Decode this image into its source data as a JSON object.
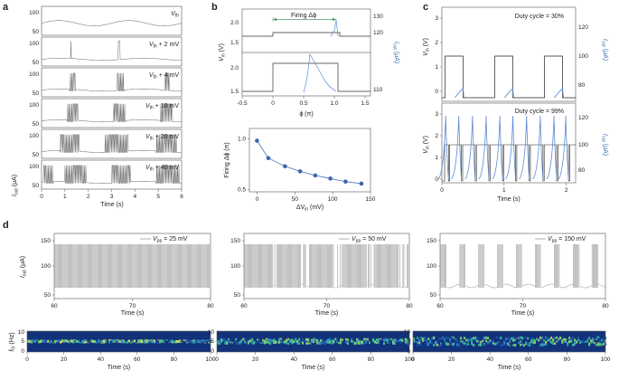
{
  "panels": {
    "a": {
      "label": "a",
      "ylabel_main": "I",
      "ylabel_sub": "out",
      "ylabel_unit": " (μA)",
      "xlabel": "Time (s)",
      "xticks": [
        "0",
        "1",
        "2",
        "3",
        "4",
        "5",
        "6"
      ],
      "yticks_top": [
        "50",
        "100"
      ],
      "trace_labels": [
        {
          "base": "V",
          "sub": "th",
          "suffix": ""
        },
        {
          "base": "V",
          "sub": "th",
          "suffix": " + 2 mV"
        },
        {
          "base": "V",
          "sub": "th",
          "suffix": " + 4 mV"
        },
        {
          "base": "V",
          "sub": "th",
          "suffix": " + 10 mV"
        },
        {
          "base": "V",
          "sub": "th",
          "suffix": " + 20 mV"
        },
        {
          "base": "V",
          "sub": "th",
          "suffix": " + 40 mV"
        }
      ]
    },
    "b": {
      "label": "b",
      "firing_label": "Firing Δϕ",
      "top_ylabel_left": "V",
      "top_ylabel_left_sub": "in",
      "top_ylabel_left_unit": " (V)",
      "top_ylabel_right": "I",
      "top_ylabel_right_sub": "out",
      "top_ylabel_right_unit": " (μA)",
      "top_yticks_left_a": [
        "2.0",
        "1.5"
      ],
      "top_yticks_left_b": [
        "2.0",
        "1.5"
      ],
      "top_yticks_right_a": [
        "130",
        "120"
      ],
      "top_yticks_right_b": [
        "110"
      ],
      "top_xticks": [
        "-0.5",
        "0",
        "0.5",
        "1.0",
        "1.5"
      ],
      "top_xlabel": "ϕ (π)",
      "bottom_ylabel": "Firing Δϕ (π)",
      "bottom_yticks": [
        "1.0",
        "0.5"
      ],
      "bottom_xticks": [
        "0",
        "50",
        "100",
        "150"
      ],
      "bottom_xlabel": "ΔV",
      "bottom_xlabel_sub": "in",
      "bottom_xlabel_unit": " (mV)"
    },
    "c": {
      "label": "c",
      "ylabel_left": "V",
      "ylabel_left_sub": "in",
      "ylabel_left_unit": " (V)",
      "ylabel_right": "I",
      "ylabel_right_sub": "out",
      "ylabel_right_unit": " (μA)",
      "duty_top": "Duty cycle = 30%",
      "duty_bottom": "Duty cycle = 99%",
      "yticks_left": [
        "3",
        "2",
        "1",
        "0"
      ],
      "yticks_right_top": [
        "120",
        "100",
        "80"
      ],
      "yticks_right_bottom": [
        "120",
        "100",
        "80"
      ],
      "xticks": [
        "0",
        "1",
        "2"
      ],
      "xlabel": "Time (s)"
    },
    "d": {
      "label": "d",
      "ylabel_main": "I",
      "ylabel_sub": "out",
      "ylabel_unit": " (μA)",
      "yticks": [
        "150",
        "100",
        "50"
      ],
      "xticks_top": [
        "60",
        "70",
        "80"
      ],
      "xlabel": "Time (s)",
      "fir_label": "f",
      "fir_sub": "fir",
      "fir_unit": " (Hz)",
      "fir_yticks": [
        "10",
        "5",
        "0"
      ],
      "xticks_bottom": [
        "0",
        "20",
        "40",
        "60",
        "80",
        "100"
      ],
      "legends": [
        {
          "base": "V",
          "sub": "pp",
          "suffix": " = 25 mV"
        },
        {
          "base": "V",
          "sub": "pp",
          "suffix": " = 50 mV"
        },
        {
          "base": "V",
          "sub": "pp",
          "suffix": " = 150 mV"
        }
      ]
    }
  },
  "chart_data": [
    {
      "type": "scatter",
      "title": "",
      "xlabel": "ΔVin (mV)",
      "ylabel": "Firing Δϕ (π)",
      "x": [
        0,
        15,
        37,
        57,
        77,
        97,
        117,
        138
      ],
      "y": [
        0.98,
        0.81,
        0.73,
        0.68,
        0.64,
        0.61,
        0.58,
        0.56
      ],
      "xlim": [
        -10,
        150
      ],
      "ylim": [
        0.48,
        1.1
      ]
    }
  ]
}
